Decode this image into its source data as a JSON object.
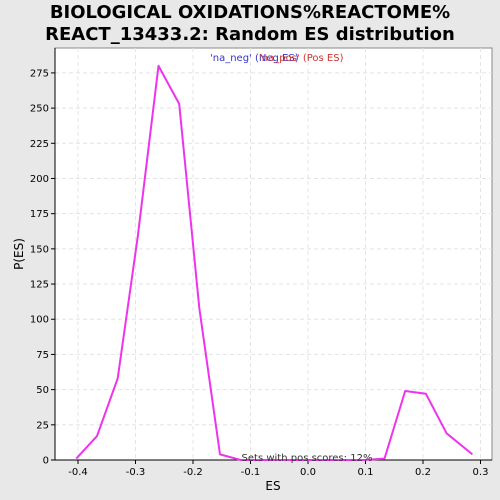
{
  "chart_data": {
    "type": "line",
    "title_line1": "BIOLOGICAL OXIDATIONS%REACTOME%",
    "title_line2": "REACT_13433.2: Random ES distribution",
    "xlabel": "ES",
    "ylabel": "P(ES)",
    "xlim": [
      -0.44,
      0.32
    ],
    "ylim": [
      0,
      280
    ],
    "x_ticks": [
      -0.4,
      -0.3,
      -0.2,
      -0.1,
      0.0,
      0.1,
      0.2,
      0.3
    ],
    "x_tick_labels": [
      "-0.4",
      "-0.3",
      "-0.2",
      "-0.1",
      "0.0",
      "0.1",
      "0.2",
      "0.3"
    ],
    "y_ticks": [
      0,
      25,
      50,
      75,
      100,
      125,
      150,
      175,
      200,
      225,
      250,
      275
    ],
    "y_tick_labels": [
      "0",
      "25",
      "50",
      "75",
      "100",
      "125",
      "150",
      "175",
      "200",
      "225",
      "250",
      "275"
    ],
    "grid": true,
    "legend": [
      {
        "label": "'na_neg' (Neg ES)",
        "color": "#3333cc"
      },
      {
        "label": "'na_pos' (Pos ES)",
        "color": "#cc3333"
      }
    ],
    "series": [
      {
        "color": "#ee33ee",
        "x": [
          -0.403,
          -0.367,
          -0.331,
          -0.296,
          -0.26,
          -0.224,
          -0.189,
          -0.153,
          -0.117,
          -0.081,
          -0.045,
          -0.01,
          0.026,
          0.062,
          0.098,
          0.133,
          0.169,
          0.205,
          0.241,
          0.286
        ],
        "y": [
          1,
          17,
          58,
          159,
          280,
          253,
          108,
          4,
          0,
          0,
          0,
          0,
          0,
          0,
          0,
          1,
          49,
          47,
          19,
          4
        ]
      }
    ],
    "annotation": "Sets with pos scores: 12%"
  }
}
